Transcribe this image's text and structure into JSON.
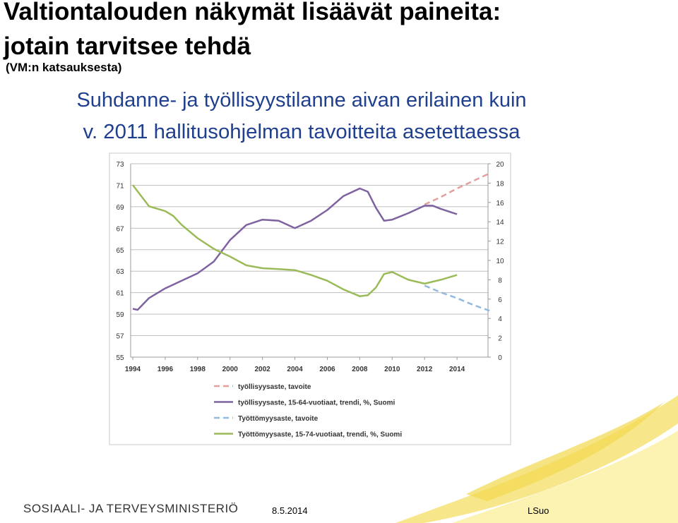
{
  "slide": {
    "title": [
      "Valtiontalouden näkymät lisäävät paineita:",
      "jotain tarvitsee tehdä"
    ],
    "subtitle": "(VM:n katsauksesta)"
  },
  "chart_data": {
    "type": "line",
    "title": [
      "Suhdanne- ja työllisyystilanne aivan erilainen kuin",
      "v. 2011 hallitusohjelman tavoitteita asetettaessa"
    ],
    "xlim": [
      1994,
      2016
    ],
    "xticks": [
      1994,
      1996,
      1998,
      2000,
      2002,
      2004,
      2006,
      2008,
      2010,
      2012,
      2014
    ],
    "ylim": [
      55,
      73
    ],
    "yticks": [
      55,
      57,
      59,
      61,
      63,
      65,
      67,
      69,
      71,
      73
    ],
    "y2lim": [
      0,
      20
    ],
    "y2ticks": [
      0,
      2,
      4,
      6,
      8,
      10,
      12,
      14,
      16,
      18,
      20
    ],
    "grid": true,
    "legend": "bottom",
    "series": [
      {
        "name": "työllisyysaste, tavoite",
        "color": "#e3a09d",
        "line_style": "dashed",
        "x": [
          2012,
          2013,
          2014,
          2015,
          2016
        ],
        "values": [
          69.2,
          69.9,
          70.7,
          71.4,
          72.1
        ]
      },
      {
        "name": "työllisyysaste, 15-64-vuotiaat, trendi, %, Suomi",
        "color": "#7f63a1",
        "line_style": "solid",
        "x": [
          1994,
          1994.3,
          1995,
          1996,
          1997,
          1998,
          1999,
          2000,
          2001,
          2002,
          2003,
          2004,
          2005,
          2006,
          2007,
          2008,
          2008.5,
          2009,
          2009.5,
          2010,
          2011,
          2012,
          2012.5,
          2013,
          2014
        ],
        "values": [
          59.5,
          59.4,
          60.5,
          61.4,
          62.1,
          62.8,
          63.9,
          65.9,
          67.3,
          67.8,
          67.7,
          67.0,
          67.7,
          68.7,
          70.0,
          70.7,
          70.4,
          68.9,
          67.7,
          67.8,
          68.4,
          69.1,
          69.1,
          68.8,
          68.3
        ]
      },
      {
        "name": "Työttömyysaste, tavoite",
        "color": "#94b8e0",
        "line_style": "dashed",
        "axis": "y2",
        "x": [
          2012,
          2013,
          2014,
          2015,
          2016
        ],
        "values": [
          7.4,
          6.7,
          6.1,
          5.4,
          4.8
        ]
      },
      {
        "name": "Työttömyysaste, 15-74-vuotiaat, trendi, %, Suomi",
        "color": "#9bbb59",
        "line_style": "solid",
        "axis": "y2",
        "x": [
          1994,
          1995,
          1996,
          1996.5,
          1997,
          1998,
          1999,
          2000,
          2001,
          2002,
          2003,
          2004,
          2005,
          2006,
          2007,
          2008,
          2008.5,
          2009,
          2009.5,
          2010,
          2011,
          2012,
          2013,
          2014
        ],
        "values": [
          17.8,
          15.6,
          15.1,
          14.6,
          13.7,
          12.3,
          11.2,
          10.4,
          9.5,
          9.2,
          9.1,
          9.0,
          8.5,
          7.9,
          7.0,
          6.3,
          6.4,
          7.2,
          8.6,
          8.8,
          8.0,
          7.6,
          8.0,
          8.5
        ]
      }
    ]
  },
  "footer": {
    "organization": "SOSIAALI- JA TERVEYSMINISTERIÖ",
    "date": "8.5.2014",
    "author": "LSuo"
  }
}
